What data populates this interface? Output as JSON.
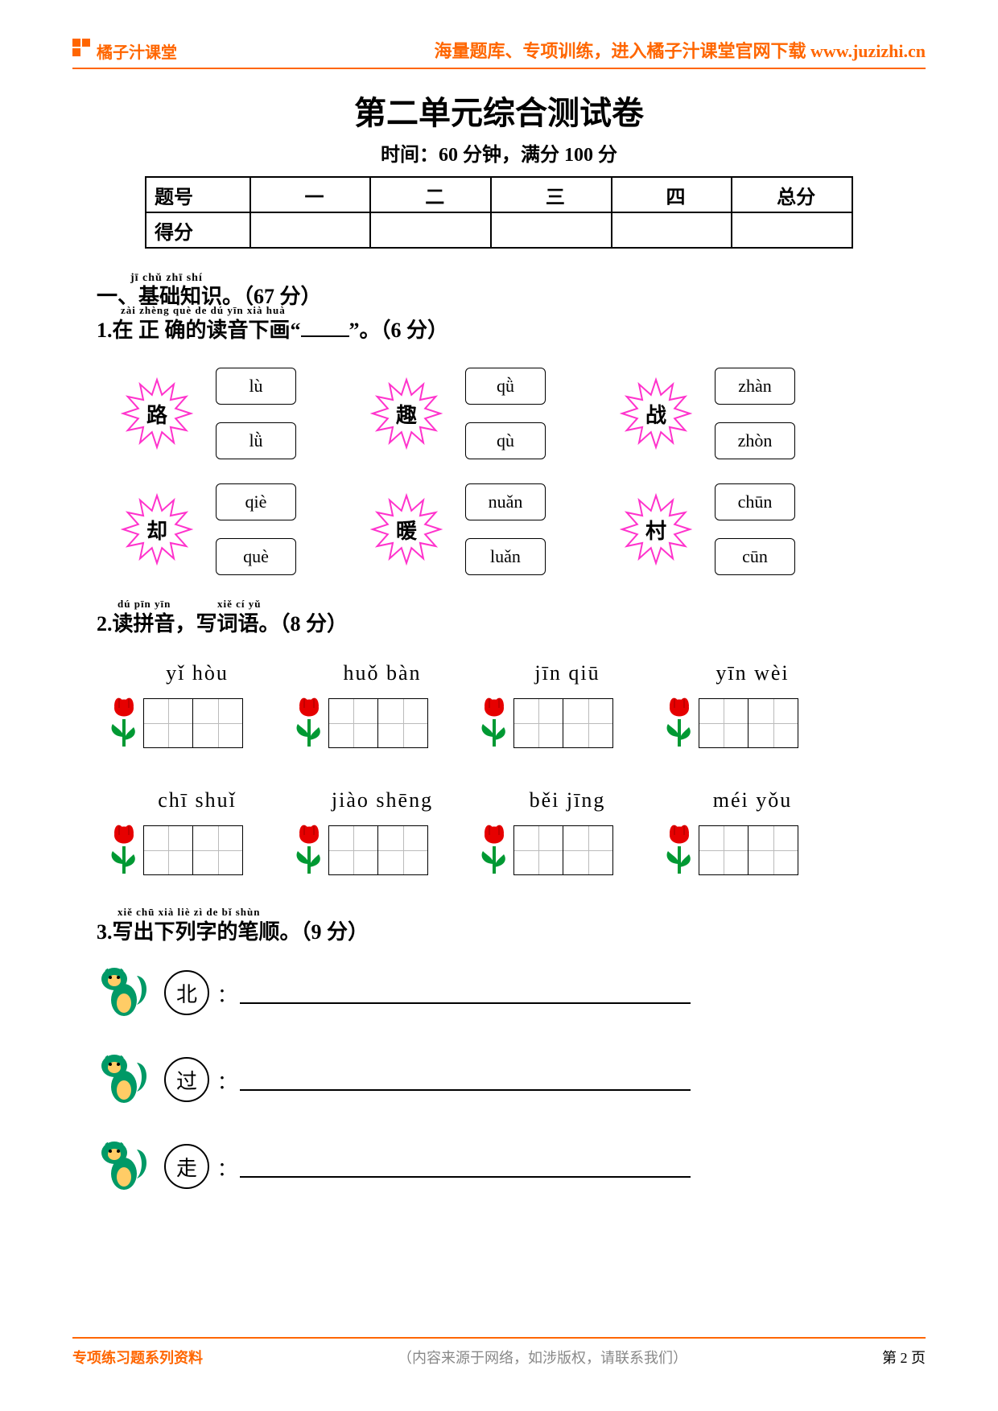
{
  "header": {
    "brand": "橘子汁课堂",
    "tagline_prefix": "海量题库、专项训练，进入橘子汁课堂官网下载 ",
    "url": "www.juzizhi.cn",
    "brand_color": "#ff6600"
  },
  "title": "第二单元综合测试卷",
  "subtitle": "时间：60 分钟，满分 100 分",
  "score_table": {
    "row1_label": "题号",
    "row2_label": "得分",
    "cols": [
      "一",
      "二",
      "三",
      "四",
      "总分"
    ]
  },
  "section1": {
    "ruby": "jī chǔ zhī shí",
    "heading": "一、基础知识。（67 分）",
    "q1": {
      "ruby": "zài zhèng què de dú yīn xià huà",
      "text_a": "1.在 正 确的读音下画“",
      "text_b": "”。（6 分）",
      "burst_color": "#ff33cc",
      "box_border": "#000000",
      "items": [
        {
          "char": "路",
          "opts": [
            "lù",
            "lǜ"
          ]
        },
        {
          "char": "趣",
          "opts": [
            "qǜ",
            "qù"
          ]
        },
        {
          "char": "战",
          "opts": [
            "zhàn",
            "zhòn"
          ]
        },
        {
          "char": "却",
          "opts": [
            "qiè",
            "què"
          ]
        },
        {
          "char": "暖",
          "opts": [
            "nuǎn",
            "luǎn"
          ]
        },
        {
          "char": "村",
          "opts": [
            "chūn",
            "cūn"
          ]
        }
      ]
    },
    "q2": {
      "ruby1": "dú pīn yīn",
      "ruby2": "xiě cí yǔ",
      "text": "2.读拼音，写词语。（8 分）",
      "tulip_petal": "#e60000",
      "tulip_leaf": "#009933",
      "items_row1": [
        {
          "py": "yǐ  hòu"
        },
        {
          "py": "huǒ  bàn"
        },
        {
          "py": "jīn  qiū"
        },
        {
          "py": "yīn  wèi"
        }
      ],
      "items_row2": [
        {
          "py": "chī shuǐ"
        },
        {
          "py": "jiào shēng"
        },
        {
          "py": "běi jīng"
        },
        {
          "py": "méi  yǒu"
        }
      ]
    },
    "q3": {
      "ruby": "xiě chū xià liè zì de bǐ shùn",
      "text": "3.写出下列字的笔顺。（9 分）",
      "items": [
        "北",
        "过",
        "走"
      ],
      "mascot_body": "#009966",
      "mascot_belly": "#ffcc66"
    }
  },
  "footer": {
    "left": "专项练习题系列资料",
    "mid": "（内容来源于网络，如涉版权，请联系我们）",
    "right_prefix": "第 ",
    "page_no": "2",
    "right_suffix": " 页"
  }
}
